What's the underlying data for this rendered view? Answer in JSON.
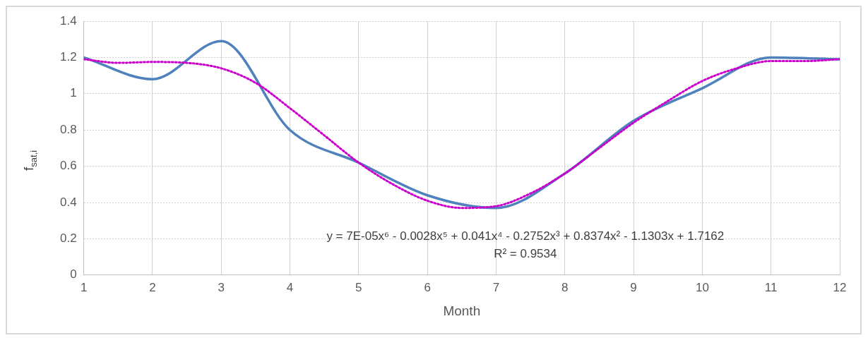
{
  "chart_data": {
    "type": "line",
    "xlabel": "Month",
    "ylabel": "f$_{sat,i}$",
    "x": [
      1,
      2,
      3,
      4,
      5,
      6,
      7,
      8,
      9,
      10,
      11,
      12
    ],
    "xlim": [
      1,
      12
    ],
    "xticks": [
      1,
      2,
      3,
      4,
      5,
      6,
      7,
      8,
      9,
      10,
      11,
      12
    ],
    "ylim": [
      0,
      1.4
    ],
    "yticks": [
      0,
      0.2,
      0.4,
      0.6,
      0.8,
      1,
      1.2,
      1.4
    ],
    "grid": true,
    "legend": false,
    "marker": "none",
    "series": [
      {
        "color": "#4f81bd",
        "line_style": "solid",
        "values": [
          1.2,
          1.08,
          1.29,
          0.8,
          0.62,
          0.44,
          0.37,
          0.56,
          0.85,
          1.03,
          1.2,
          1.19
        ]
      },
      {
        "type": "line",
        "color": "#cc00cc",
        "line_style": "dotted",
        "x": [
          1,
          1.5,
          2,
          2.5,
          3,
          3.5,
          4,
          4.5,
          5,
          5.5,
          6,
          6.5,
          7,
          7.5,
          8,
          8.5,
          9,
          9.5,
          10,
          10.5,
          11,
          11.5,
          12
        ],
        "values": [
          1.19,
          1.17,
          1.175,
          1.17,
          1.14,
          1.06,
          0.92,
          0.77,
          0.62,
          0.5,
          0.41,
          0.37,
          0.38,
          0.45,
          0.56,
          0.7,
          0.84,
          0.96,
          1.07,
          1.14,
          1.18,
          1.18,
          1.19
        ]
      }
    ],
    "annotations": [
      "y = 7E-05x⁶ - 0.0028x⁵ + 0.041x⁴ - 0.2752x³ + 0.8374x² - 1.1303x + 1.7162",
      "R² = 0.9534"
    ]
  }
}
